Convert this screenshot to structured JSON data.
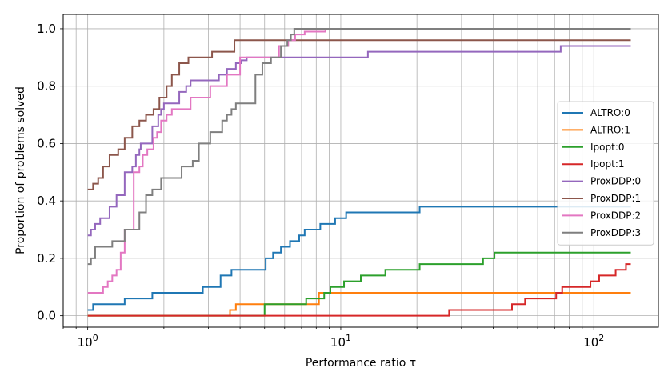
{
  "chart_data": {
    "type": "line",
    "step": true,
    "title": "",
    "xlabel": "Performance ratio τ",
    "ylabel": "Proportion of problems solved",
    "xscale": "log",
    "xlim": [
      0.8,
      180
    ],
    "ylim": [
      -0.04,
      1.05
    ],
    "grid": true,
    "legend_position": "center-right",
    "x_major_ticks": [
      1,
      10,
      100
    ],
    "x_tick_labels": [
      {
        "base": "10",
        "exp": "0"
      },
      {
        "base": "10",
        "exp": "1"
      },
      {
        "base": "10",
        "exp": "2"
      }
    ],
    "y_ticks": [
      0.0,
      0.2,
      0.4,
      0.6,
      0.8,
      1.0
    ],
    "y_tick_labels": [
      "0.0",
      "0.2",
      "0.4",
      "0.6",
      "0.8",
      "1.0"
    ],
    "series": [
      {
        "name": "ALTRO:0",
        "color": "#1f77b4",
        "x": [
          1,
          1.05,
          1.4,
          1.8,
          2.85,
          3.35,
          3.7,
          5.05,
          5.4,
          5.8,
          6.3,
          6.85,
          7.2,
          8.3,
          9.5,
          10.5,
          20.5,
          140
        ],
        "y": [
          0.02,
          0.04,
          0.06,
          0.08,
          0.1,
          0.14,
          0.16,
          0.2,
          0.22,
          0.24,
          0.26,
          0.28,
          0.3,
          0.32,
          0.34,
          0.36,
          0.38,
          0.38
        ]
      },
      {
        "name": "ALTRO:1",
        "color": "#ff7f0e",
        "x": [
          1,
          3.65,
          3.85,
          8.2,
          140
        ],
        "y": [
          0.0,
          0.02,
          0.04,
          0.08,
          0.08
        ]
      },
      {
        "name": "Ipopt:0",
        "color": "#2ca02c",
        "x": [
          1,
          5.0,
          7.3,
          8.6,
          9.1,
          10.3,
          12.0,
          15.0,
          17.3,
          20.5,
          36.5,
          40.5,
          140
        ],
        "y": [
          0.0,
          0.04,
          0.06,
          0.08,
          0.1,
          0.12,
          0.14,
          0.16,
          0.16,
          0.18,
          0.2,
          0.22,
          0.22
        ]
      },
      {
        "name": "Ipopt:1",
        "color": "#d62728",
        "x": [
          1,
          26.8,
          47.5,
          53.5,
          71,
          75,
          97,
          105,
          122,
          134,
          140
        ],
        "y": [
          0.0,
          0.02,
          0.04,
          0.06,
          0.08,
          0.1,
          0.12,
          0.14,
          0.16,
          0.18,
          0.18
        ]
      },
      {
        "name": "ProxDDP:0",
        "color": "#9467bd",
        "x": [
          1,
          1.03,
          1.07,
          1.12,
          1.22,
          1.3,
          1.4,
          1.5,
          1.55,
          1.6,
          1.62,
          1.8,
          1.9,
          1.95,
          2.0,
          2.3,
          2.45,
          2.55,
          3.3,
          3.55,
          3.85,
          4.05,
          4.25,
          4.5,
          12.8,
          74,
          140
        ],
        "y": [
          0.28,
          0.3,
          0.32,
          0.34,
          0.38,
          0.42,
          0.5,
          0.52,
          0.56,
          0.58,
          0.6,
          0.66,
          0.7,
          0.72,
          0.74,
          0.78,
          0.8,
          0.82,
          0.84,
          0.86,
          0.88,
          0.89,
          0.9,
          0.9,
          0.92,
          0.94,
          0.94
        ]
      },
      {
        "name": "ProxDDP:1",
        "color": "#8c564b",
        "x": [
          1,
          1.05,
          1.1,
          1.15,
          1.22,
          1.32,
          1.4,
          1.5,
          1.6,
          1.7,
          1.82,
          1.92,
          2.05,
          2.15,
          2.3,
          2.5,
          3.1,
          3.8,
          140
        ],
        "y": [
          0.44,
          0.46,
          0.48,
          0.52,
          0.56,
          0.58,
          0.62,
          0.66,
          0.68,
          0.7,
          0.72,
          0.76,
          0.8,
          0.84,
          0.88,
          0.9,
          0.92,
          0.96,
          0.96
        ]
      },
      {
        "name": "ProxDDP:2",
        "color": "#e377c2",
        "x": [
          1,
          1.15,
          1.2,
          1.25,
          1.3,
          1.35,
          1.4,
          1.52,
          1.6,
          1.65,
          1.72,
          1.82,
          1.88,
          1.95,
          2.05,
          2.15,
          2.55,
          3.05,
          3.55,
          3.75,
          4.0,
          5.7,
          6.2,
          6.6,
          7.2,
          8.7
        ],
        "y": [
          0.08,
          0.1,
          0.12,
          0.14,
          0.16,
          0.22,
          0.3,
          0.5,
          0.52,
          0.56,
          0.58,
          0.62,
          0.64,
          0.68,
          0.7,
          0.72,
          0.76,
          0.8,
          0.84,
          0.84,
          0.9,
          0.94,
          0.96,
          0.98,
          0.99,
          1.0
        ]
      },
      {
        "name": "ProxDDP:3",
        "color": "#7f7f7f",
        "x": [
          1,
          1.03,
          1.07,
          1.25,
          1.4,
          1.6,
          1.7,
          1.8,
          1.95,
          2.35,
          2.6,
          2.75,
          3.05,
          3.4,
          3.55,
          3.7,
          3.85,
          4.6,
          4.9,
          5.3,
          5.8,
          6.15,
          6.35,
          6.55,
          140
        ],
        "y": [
          0.18,
          0.2,
          0.24,
          0.26,
          0.3,
          0.36,
          0.42,
          0.44,
          0.48,
          0.52,
          0.54,
          0.6,
          0.64,
          0.68,
          0.7,
          0.72,
          0.74,
          0.84,
          0.88,
          0.9,
          0.94,
          0.96,
          0.98,
          1.0,
          1.0
        ]
      }
    ]
  }
}
